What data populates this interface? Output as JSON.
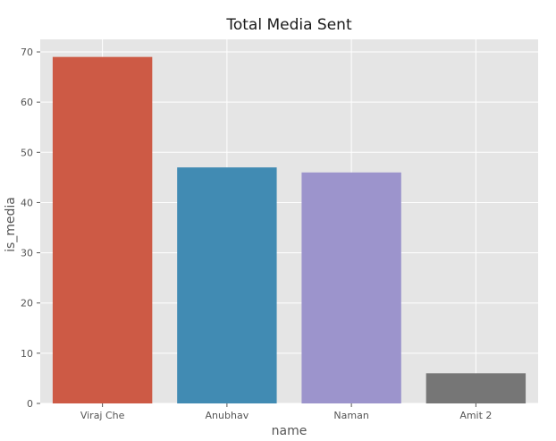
{
  "chart_data": {
    "type": "bar",
    "title": "Total Media Sent",
    "xlabel": "name",
    "ylabel": "is_media",
    "categories": [
      "Viraj Che",
      "Anubhav",
      "Naman",
      "Amit 2"
    ],
    "values": [
      69,
      47,
      46,
      6
    ],
    "colors": [
      "#cd5a45",
      "#418bb3",
      "#9c94cc",
      "#767676"
    ],
    "ylim": [
      0,
      72.5
    ],
    "yticks": [
      0,
      10,
      20,
      30,
      40,
      50,
      60,
      70
    ],
    "grid": true,
    "background": "#e5e5e5"
  }
}
